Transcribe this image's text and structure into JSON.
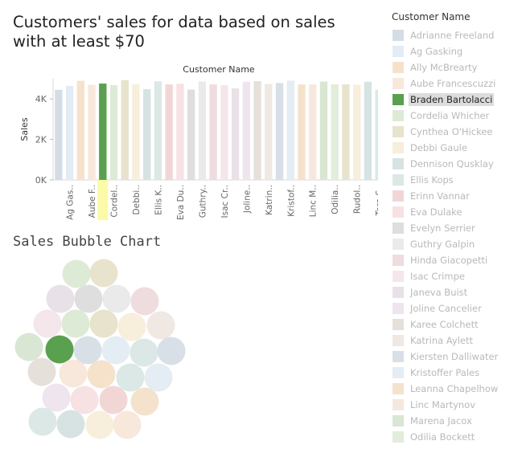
{
  "dashboard": {
    "title": "Customers' sales for data based on sales with at least $70",
    "bubble_title": "Sales Bubble Chart"
  },
  "legend": {
    "title": "Customer Name",
    "selected": "Braden Bartolacci",
    "items": [
      {
        "name": "Adrianne Freeland",
        "color": "#d4dde6"
      },
      {
        "name": "Ag Gasking",
        "color": "#e3ecf5"
      },
      {
        "name": "Ally McBrearty",
        "color": "#f6e2cb"
      },
      {
        "name": "Aube Francescuzzi",
        "color": "#f7e8db"
      },
      {
        "name": "Braden Bartolacci",
        "color": "#59a14f"
      },
      {
        "name": "Cordelia Whicher",
        "color": "#ddebd6"
      },
      {
        "name": "Cynthea O'Hickee",
        "color": "#e8e3cc"
      },
      {
        "name": "Debbi Gaule",
        "color": "#f7eedb"
      },
      {
        "name": "Dennison Qusklay",
        "color": "#d7e3e3"
      },
      {
        "name": "Ellis Kops",
        "color": "#dbe8e6"
      },
      {
        "name": "Erinn Vannar",
        "color": "#f2d6d6"
      },
      {
        "name": "Eva Dulake",
        "color": "#f7e1e3"
      },
      {
        "name": "Evelyn Serrier",
        "color": "#dedede"
      },
      {
        "name": "Guthry Galpin",
        "color": "#eaeaea"
      },
      {
        "name": "Hinda Giacopetti",
        "color": "#eedcdf"
      },
      {
        "name": "Isac Crimpe",
        "color": "#f4e6ea"
      },
      {
        "name": "Janeva Buist",
        "color": "#e9e1e8"
      },
      {
        "name": "Joline Cancelier",
        "color": "#eee5ee"
      },
      {
        "name": "Karee Colchett",
        "color": "#e6e0da"
      },
      {
        "name": "Katrina Aylett",
        "color": "#efe8e3"
      },
      {
        "name": "Kiersten Dalliwater",
        "color": "#d8dfe7"
      },
      {
        "name": "Kristoffer Pales",
        "color": "#e4ecf4"
      },
      {
        "name": "Leanna Chapelhow",
        "color": "#f4e2cc"
      },
      {
        "name": "Linc Martynov",
        "color": "#f6e8dc"
      },
      {
        "name": "Marena Jacox",
        "color": "#d9e6d3"
      },
      {
        "name": "Odilia Bockett",
        "color": "#e2eddb"
      }
    ]
  },
  "chart_data": [
    {
      "type": "bar",
      "title": "Customer Name",
      "ylabel": "Sales",
      "ylim": [
        0,
        5000
      ],
      "yticks": [
        "0K",
        "2K",
        "4K"
      ],
      "selected": "Braden Bartolacci",
      "highlight_color": "#fafaa8",
      "tick_labels": [
        "Ag Gas..",
        "Aube F..",
        "Cordel..",
        "Debbi..",
        "Ellis K..",
        "Eva Du..",
        "Guthry..",
        "Isac Cr..",
        "Joline..",
        "Katrin..",
        "Kristof..",
        "Linc M..",
        "Odilia..",
        "Rudol..",
        "Tera S.."
      ],
      "bars": [
        {
          "color": "#d4dde6",
          "value": 4450
        },
        {
          "color": "#e3ecf5",
          "value": 4650
        },
        {
          "color": "#f6e2cb",
          "value": 4900
        },
        {
          "color": "#f7e8db",
          "value": 4700
        },
        {
          "color": "#59a14f",
          "value": 4760
        },
        {
          "color": "#ddebd6",
          "value": 4680
        },
        {
          "color": "#e8e3cc",
          "value": 4930
        },
        {
          "color": "#f7eedb",
          "value": 4720
        },
        {
          "color": "#d7e3e3",
          "value": 4480
        },
        {
          "color": "#dbe8e6",
          "value": 4870
        },
        {
          "color": "#f2d6d6",
          "value": 4720
        },
        {
          "color": "#f7e1e3",
          "value": 4750
        },
        {
          "color": "#dedede",
          "value": 4460
        },
        {
          "color": "#eaeaea",
          "value": 4860
        },
        {
          "color": "#eedcdf",
          "value": 4720
        },
        {
          "color": "#f4e6ea",
          "value": 4680
        },
        {
          "color": "#e9e1e8",
          "value": 4520
        },
        {
          "color": "#eee5ee",
          "value": 4850
        },
        {
          "color": "#e6e0da",
          "value": 4880
        },
        {
          "color": "#efe8e3",
          "value": 4740
        },
        {
          "color": "#d8dfe7",
          "value": 4790
        },
        {
          "color": "#e4ecf4",
          "value": 4900
        },
        {
          "color": "#f4e2cc",
          "value": 4720
        },
        {
          "color": "#f6e8dc",
          "value": 4720
        },
        {
          "color": "#d9e6d3",
          "value": 4860
        },
        {
          "color": "#e2eddb",
          "value": 4720
        },
        {
          "color": "#e8e3cc",
          "value": 4720
        },
        {
          "color": "#f7eedb",
          "value": 4700
        },
        {
          "color": "#d7e3e3",
          "value": 4850
        },
        {
          "color": "#dbe8e6",
          "value": 4460
        }
      ]
    },
    {
      "type": "scatter",
      "subtype": "packed-bubble",
      "title": "Sales Bubble Chart",
      "bubbles": [
        {
          "color": "#ddebd6",
          "size": 1
        },
        {
          "color": "#e8e3cc",
          "size": 1
        },
        {
          "color": "#e9e1e8",
          "size": 1
        },
        {
          "color": "#dedede",
          "size": 1
        },
        {
          "color": "#eaeaea",
          "size": 1
        },
        {
          "color": "#eedcdf",
          "size": 1
        },
        {
          "color": "#f4e6ea",
          "size": 1
        },
        {
          "color": "#ddebd6",
          "size": 1
        },
        {
          "color": "#e8e3cc",
          "size": 1
        },
        {
          "color": "#f7eedb",
          "size": 1
        },
        {
          "color": "#efe8e3",
          "size": 1
        },
        {
          "color": "#d9e6d3",
          "size": 1
        },
        {
          "color": "#59a14f",
          "size": 1
        },
        {
          "color": "#d8dfe7",
          "size": 1
        },
        {
          "color": "#e4ecf4",
          "size": 1
        },
        {
          "color": "#dbe8e6",
          "size": 1
        },
        {
          "color": "#d8dfe7",
          "size": 1
        },
        {
          "color": "#e6e0da",
          "size": 1
        },
        {
          "color": "#f7e8db",
          "size": 1
        },
        {
          "color": "#f6e2cb",
          "size": 1
        },
        {
          "color": "#dbe8e6",
          "size": 1
        },
        {
          "color": "#e4ecf4",
          "size": 1
        },
        {
          "color": "#eee5ee",
          "size": 1
        },
        {
          "color": "#f7e1e3",
          "size": 1
        },
        {
          "color": "#f2d6d6",
          "size": 1
        },
        {
          "color": "#f4e2cc",
          "size": 1
        },
        {
          "color": "#dbe8e6",
          "size": 1
        },
        {
          "color": "#d7e3e3",
          "size": 1
        },
        {
          "color": "#f7eedb",
          "size": 1
        },
        {
          "color": "#f7e8db",
          "size": 1
        }
      ]
    }
  ]
}
